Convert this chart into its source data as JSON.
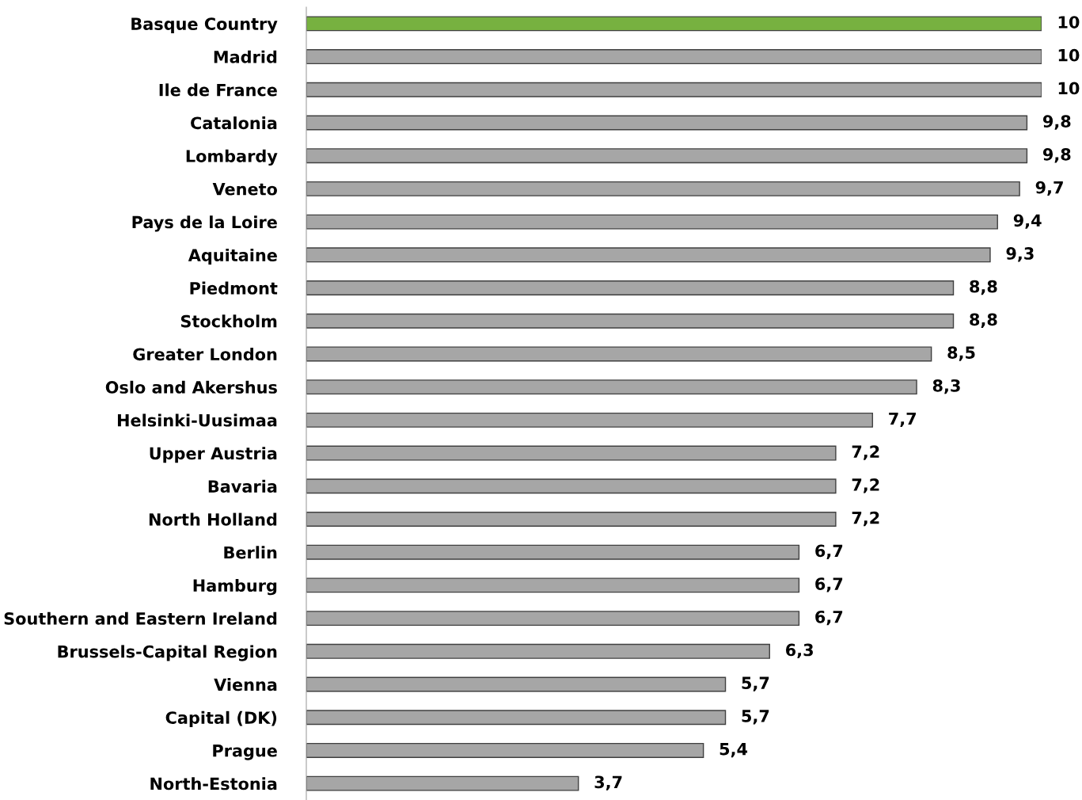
{
  "chart_data": {
    "type": "bar",
    "orientation": "horizontal",
    "categories": [
      "Basque Country",
      "Madrid",
      "Ile de France",
      "Catalonia",
      "Lombardy",
      "Veneto",
      "Pays de la Loire",
      "Aquitaine",
      "Piedmont",
      "Stockholm",
      "Greater London",
      "Oslo and Akershus",
      "Helsinki-Uusimaa",
      "Upper Austria",
      "Bavaria",
      "North Holland",
      "Berlin",
      "Hamburg",
      "Southern and Eastern Ireland",
      "Brussels-Capital Region",
      "Vienna",
      "Capital (DK)",
      "Prague",
      "North-Estonia"
    ],
    "values": [
      10,
      10,
      10,
      9.8,
      9.8,
      9.7,
      9.4,
      9.3,
      8.8,
      8.8,
      8.5,
      8.3,
      7.7,
      7.2,
      7.2,
      7.2,
      6.7,
      6.7,
      6.7,
      6.3,
      5.7,
      5.7,
      5.4,
      3.7
    ],
    "value_labels": [
      "10",
      "10",
      "10",
      "9,8",
      "9,8",
      "9,7",
      "9,4",
      "9,3",
      "8,8",
      "8,8",
      "8,5",
      "8,3",
      "7,7",
      "7,2",
      "7,2",
      "7,2",
      "6,7",
      "6,7",
      "6,7",
      "6,3",
      "5,7",
      "5,7",
      "5,4",
      "3,7"
    ],
    "colors": [
      "#77b140",
      "#a6a6a6",
      "#a6a6a6",
      "#a6a6a6",
      "#a6a6a6",
      "#a6a6a6",
      "#a6a6a6",
      "#a6a6a6",
      "#a6a6a6",
      "#a6a6a6",
      "#a6a6a6",
      "#a6a6a6",
      "#a6a6a6",
      "#a6a6a6",
      "#a6a6a6",
      "#a6a6a6",
      "#a6a6a6",
      "#a6a6a6",
      "#a6a6a6",
      "#a6a6a6",
      "#a6a6a6",
      "#a6a6a6",
      "#a6a6a6",
      "#a6a6a6"
    ],
    "xlim": [
      0,
      10
    ],
    "tick_labels": "y"
  }
}
